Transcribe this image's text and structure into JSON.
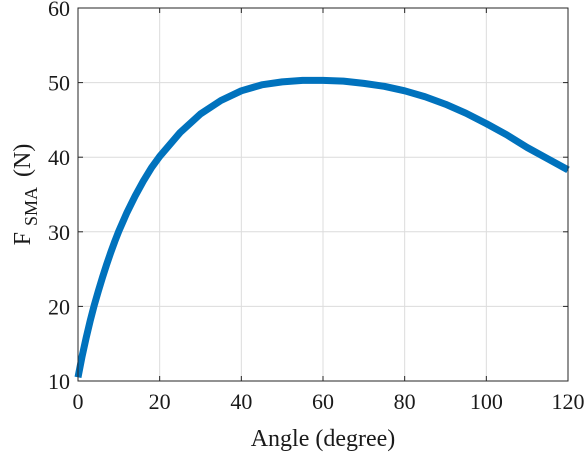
{
  "chart_data": {
    "type": "line",
    "xlabel": "Angle (degree)",
    "ylabel_main": "F",
    "ylabel_sub": "SMA",
    "ylabel_unit": "(N)",
    "xlim": [
      0,
      120
    ],
    "ylim": [
      10,
      60
    ],
    "xticks": [
      0,
      20,
      40,
      60,
      80,
      100,
      120
    ],
    "yticks": [
      10,
      20,
      30,
      40,
      50,
      60
    ],
    "grid": true,
    "series": [
      {
        "color": "#0072BD",
        "x": [
          0,
          1,
          2,
          3,
          4,
          5,
          6,
          7,
          8,
          9,
          10,
          12,
          14,
          16,
          18,
          20,
          25,
          30,
          35,
          40,
          45,
          50,
          55,
          60,
          65,
          70,
          75,
          80,
          85,
          90,
          95,
          100,
          105,
          110,
          115,
          120
        ],
        "y": [
          10.5,
          13.3,
          15.8,
          18.1,
          20.2,
          22.1,
          23.9,
          25.6,
          27.2,
          28.7,
          30.1,
          32.6,
          34.8,
          36.8,
          38.6,
          40.1,
          43.3,
          45.8,
          47.6,
          48.9,
          49.7,
          50.1,
          50.3,
          50.3,
          50.2,
          49.9,
          49.5,
          48.9,
          48.1,
          47.1,
          45.9,
          44.5,
          43.0,
          41.3,
          39.8,
          38.3
        ]
      }
    ]
  }
}
